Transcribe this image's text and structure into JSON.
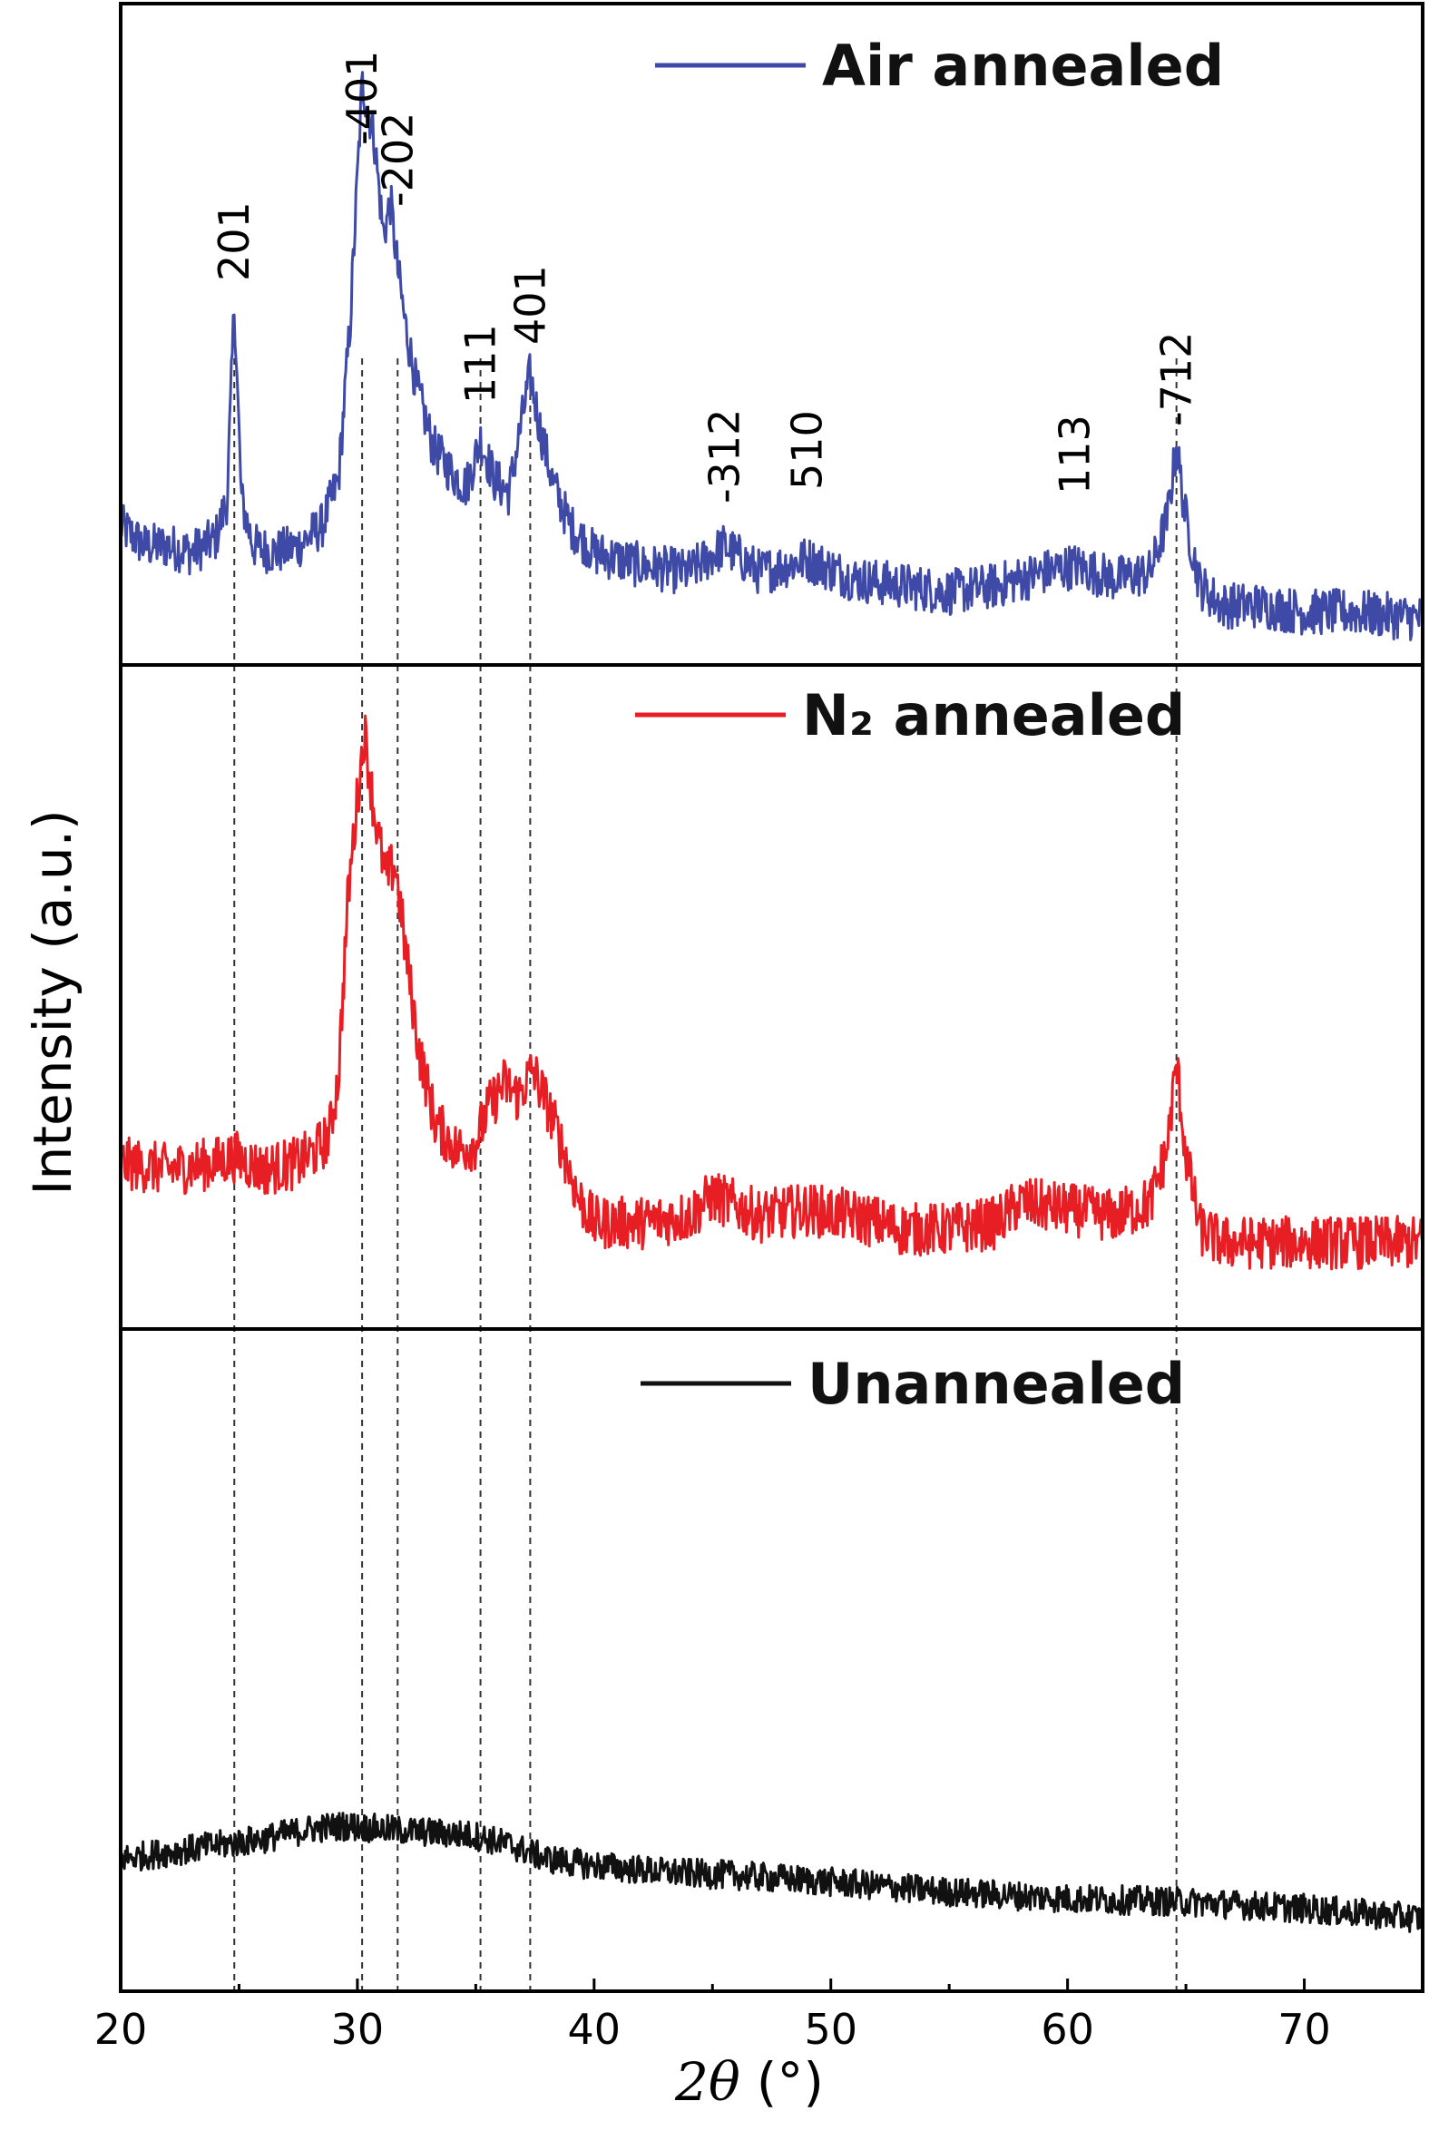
{
  "chart_data": {
    "type": "line",
    "title": "",
    "xlabel": "2θ (°)",
    "xlabel_parts": {
      "var": "2θ",
      "unit": "(°)"
    },
    "ylabel": "Intensity (a.u.)",
    "xlim": [
      20,
      75
    ],
    "x_ticks": [
      20,
      30,
      40,
      50,
      60,
      70
    ],
    "x_minor_ticks": [
      25,
      35,
      45,
      55,
      65
    ],
    "grid": false,
    "legend_placement": "top-center of each panel",
    "reference_lines_x": [
      24.8,
      30.2,
      31.7,
      35.2,
      37.3,
      64.6
    ],
    "peak_labels": [
      {
        "text": "201",
        "x": 24.8
      },
      {
        "text": "-401",
        "x": 30.2
      },
      {
        "text": "-202",
        "x": 31.7
      },
      {
        "text": "111",
        "x": 35.2
      },
      {
        "text": "401",
        "x": 37.3
      },
      {
        "text": "-312",
        "x": 45.5
      },
      {
        "text": "510",
        "x": 49.0
      },
      {
        "text": "113",
        "x": 60.3
      },
      {
        "text": "-712",
        "x": 64.6
      }
    ],
    "series": [
      {
        "name": "Air annealed",
        "color": "#3e4aa6",
        "x": [
          20,
          21,
          22,
          23,
          24,
          24.5,
          24.8,
          25.1,
          25.6,
          26.5,
          27.5,
          28.5,
          29.2,
          29.7,
          30.2,
          30.7,
          31.1,
          31.4,
          31.7,
          32.0,
          32.5,
          33.2,
          34.0,
          34.6,
          35.2,
          35.8,
          36.4,
          36.9,
          37.3,
          37.7,
          38.3,
          39.0,
          40,
          42,
          44,
          45.5,
          47,
          49,
          51,
          53,
          55,
          57,
          59,
          60.3,
          62,
          63.5,
          64.2,
          64.6,
          65.0,
          65.6,
          66.5,
          68,
          70,
          72,
          75
        ],
        "y": [
          0.21,
          0.18,
          0.18,
          0.17,
          0.19,
          0.25,
          0.55,
          0.25,
          0.18,
          0.17,
          0.18,
          0.21,
          0.28,
          0.52,
          0.88,
          0.8,
          0.65,
          0.7,
          0.6,
          0.52,
          0.42,
          0.33,
          0.29,
          0.27,
          0.34,
          0.28,
          0.26,
          0.36,
          0.44,
          0.36,
          0.27,
          0.21,
          0.17,
          0.15,
          0.14,
          0.18,
          0.14,
          0.16,
          0.13,
          0.12,
          0.11,
          0.12,
          0.14,
          0.15,
          0.13,
          0.14,
          0.22,
          0.33,
          0.22,
          0.12,
          0.09,
          0.09,
          0.08,
          0.08,
          0.07
        ]
      },
      {
        "name": "N₂ annealed",
        "color": "#e81e25",
        "x": [
          20,
          22,
          24,
          24.8,
          26,
          27.5,
          28.3,
          28.8,
          29.2,
          29.6,
          30.0,
          30.3,
          30.7,
          31.2,
          31.6,
          32.0,
          32.6,
          33.3,
          34.2,
          35.0,
          35.5,
          36.2,
          36.8,
          37.4,
          38.0,
          38.6,
          39.3,
          40,
          42,
          44,
          45,
          47,
          49,
          51,
          53,
          55,
          57,
          58,
          60,
          62,
          63.5,
          64.2,
          64.6,
          65.0,
          65.6,
          66.5,
          68,
          70,
          72,
          75
        ],
        "y": [
          0.25,
          0.24,
          0.25,
          0.26,
          0.24,
          0.25,
          0.27,
          0.29,
          0.38,
          0.65,
          0.8,
          0.9,
          0.78,
          0.68,
          0.7,
          0.58,
          0.42,
          0.31,
          0.27,
          0.28,
          0.33,
          0.37,
          0.35,
          0.39,
          0.34,
          0.28,
          0.2,
          0.16,
          0.16,
          0.17,
          0.2,
          0.17,
          0.18,
          0.17,
          0.15,
          0.15,
          0.16,
          0.19,
          0.18,
          0.17,
          0.19,
          0.27,
          0.4,
          0.26,
          0.15,
          0.13,
          0.13,
          0.13,
          0.13,
          0.13
        ]
      },
      {
        "name": "Unannealed",
        "color": "#111111",
        "x": [
          20,
          22,
          24,
          26,
          28,
          29.5,
          31,
          33,
          35,
          36.5,
          38,
          40,
          43,
          46,
          50,
          55,
          60,
          65,
          70,
          75
        ],
        "y": [
          0.2,
          0.21,
          0.22,
          0.23,
          0.245,
          0.25,
          0.245,
          0.24,
          0.235,
          0.22,
          0.2,
          0.19,
          0.18,
          0.175,
          0.165,
          0.15,
          0.14,
          0.135,
          0.125,
          0.11
        ]
      }
    ]
  }
}
